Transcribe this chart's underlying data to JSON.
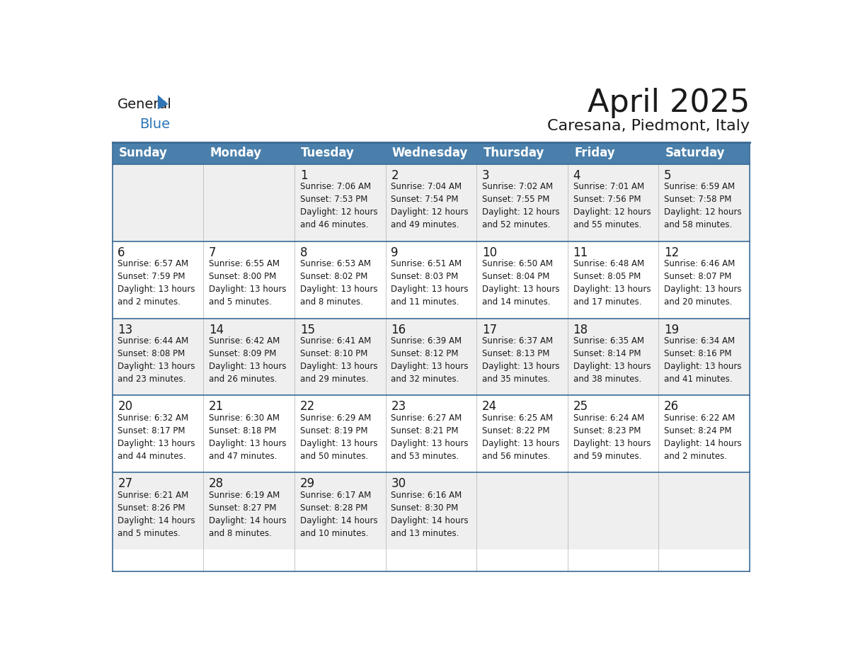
{
  "title": "April 2025",
  "subtitle": "Caresana, Piedmont, Italy",
  "header_bg": "#4a7fab",
  "header_text_color": "#ffffff",
  "row_bg_odd": "#efefef",
  "row_bg_even": "#ffffff",
  "row_border_color": "#3a6a96",
  "col_div_color": "#bbbbbb",
  "text_color": "#1a1a1a",
  "day_headers": [
    "Sunday",
    "Monday",
    "Tuesday",
    "Wednesday",
    "Thursday",
    "Friday",
    "Saturday"
  ],
  "days": [
    {
      "day": null,
      "text": ""
    },
    {
      "day": null,
      "text": ""
    },
    {
      "day": 1,
      "text": "Sunrise: 7:06 AM\nSunset: 7:53 PM\nDaylight: 12 hours\nand 46 minutes."
    },
    {
      "day": 2,
      "text": "Sunrise: 7:04 AM\nSunset: 7:54 PM\nDaylight: 12 hours\nand 49 minutes."
    },
    {
      "day": 3,
      "text": "Sunrise: 7:02 AM\nSunset: 7:55 PM\nDaylight: 12 hours\nand 52 minutes."
    },
    {
      "day": 4,
      "text": "Sunrise: 7:01 AM\nSunset: 7:56 PM\nDaylight: 12 hours\nand 55 minutes."
    },
    {
      "day": 5,
      "text": "Sunrise: 6:59 AM\nSunset: 7:58 PM\nDaylight: 12 hours\nand 58 minutes."
    },
    {
      "day": 6,
      "text": "Sunrise: 6:57 AM\nSunset: 7:59 PM\nDaylight: 13 hours\nand 2 minutes."
    },
    {
      "day": 7,
      "text": "Sunrise: 6:55 AM\nSunset: 8:00 PM\nDaylight: 13 hours\nand 5 minutes."
    },
    {
      "day": 8,
      "text": "Sunrise: 6:53 AM\nSunset: 8:02 PM\nDaylight: 13 hours\nand 8 minutes."
    },
    {
      "day": 9,
      "text": "Sunrise: 6:51 AM\nSunset: 8:03 PM\nDaylight: 13 hours\nand 11 minutes."
    },
    {
      "day": 10,
      "text": "Sunrise: 6:50 AM\nSunset: 8:04 PM\nDaylight: 13 hours\nand 14 minutes."
    },
    {
      "day": 11,
      "text": "Sunrise: 6:48 AM\nSunset: 8:05 PM\nDaylight: 13 hours\nand 17 minutes."
    },
    {
      "day": 12,
      "text": "Sunrise: 6:46 AM\nSunset: 8:07 PM\nDaylight: 13 hours\nand 20 minutes."
    },
    {
      "day": 13,
      "text": "Sunrise: 6:44 AM\nSunset: 8:08 PM\nDaylight: 13 hours\nand 23 minutes."
    },
    {
      "day": 14,
      "text": "Sunrise: 6:42 AM\nSunset: 8:09 PM\nDaylight: 13 hours\nand 26 minutes."
    },
    {
      "day": 15,
      "text": "Sunrise: 6:41 AM\nSunset: 8:10 PM\nDaylight: 13 hours\nand 29 minutes."
    },
    {
      "day": 16,
      "text": "Sunrise: 6:39 AM\nSunset: 8:12 PM\nDaylight: 13 hours\nand 32 minutes."
    },
    {
      "day": 17,
      "text": "Sunrise: 6:37 AM\nSunset: 8:13 PM\nDaylight: 13 hours\nand 35 minutes."
    },
    {
      "day": 18,
      "text": "Sunrise: 6:35 AM\nSunset: 8:14 PM\nDaylight: 13 hours\nand 38 minutes."
    },
    {
      "day": 19,
      "text": "Sunrise: 6:34 AM\nSunset: 8:16 PM\nDaylight: 13 hours\nand 41 minutes."
    },
    {
      "day": 20,
      "text": "Sunrise: 6:32 AM\nSunset: 8:17 PM\nDaylight: 13 hours\nand 44 minutes."
    },
    {
      "day": 21,
      "text": "Sunrise: 6:30 AM\nSunset: 8:18 PM\nDaylight: 13 hours\nand 47 minutes."
    },
    {
      "day": 22,
      "text": "Sunrise: 6:29 AM\nSunset: 8:19 PM\nDaylight: 13 hours\nand 50 minutes."
    },
    {
      "day": 23,
      "text": "Sunrise: 6:27 AM\nSunset: 8:21 PM\nDaylight: 13 hours\nand 53 minutes."
    },
    {
      "day": 24,
      "text": "Sunrise: 6:25 AM\nSunset: 8:22 PM\nDaylight: 13 hours\nand 56 minutes."
    },
    {
      "day": 25,
      "text": "Sunrise: 6:24 AM\nSunset: 8:23 PM\nDaylight: 13 hours\nand 59 minutes."
    },
    {
      "day": 26,
      "text": "Sunrise: 6:22 AM\nSunset: 8:24 PM\nDaylight: 14 hours\nand 2 minutes."
    },
    {
      "day": 27,
      "text": "Sunrise: 6:21 AM\nSunset: 8:26 PM\nDaylight: 14 hours\nand 5 minutes."
    },
    {
      "day": 28,
      "text": "Sunrise: 6:19 AM\nSunset: 8:27 PM\nDaylight: 14 hours\nand 8 minutes."
    },
    {
      "day": 29,
      "text": "Sunrise: 6:17 AM\nSunset: 8:28 PM\nDaylight: 14 hours\nand 10 minutes."
    },
    {
      "day": 30,
      "text": "Sunrise: 6:16 AM\nSunset: 8:30 PM\nDaylight: 14 hours\nand 13 minutes."
    },
    {
      "day": null,
      "text": ""
    },
    {
      "day": null,
      "text": ""
    },
    {
      "day": null,
      "text": ""
    }
  ],
  "num_weeks": 5,
  "title_fontsize": 32,
  "subtitle_fontsize": 16,
  "header_fontsize": 12,
  "day_num_fontsize": 12,
  "cell_text_fontsize": 8.5
}
